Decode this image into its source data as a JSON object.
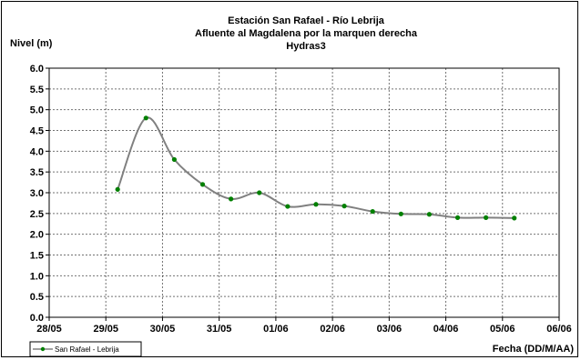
{
  "chart_data": {
    "type": "line",
    "title": [
      "Estación San Rafael - Río Lebrija",
      "Afluente al Magdalena por la marquen derecha",
      "Hydras3"
    ],
    "ylabel": "Nivel (m)",
    "xlabel": "Fecha (DD/M/AA)",
    "ylim": [
      0.0,
      6.0
    ],
    "yticks": [
      "0.0",
      "0.5",
      "1.0",
      "1.5",
      "2.0",
      "2.5",
      "3.0",
      "3.5",
      "4.0",
      "4.5",
      "5.0",
      "5.5",
      "6.0"
    ],
    "xticks": [
      "28/05",
      "29/05",
      "30/05",
      "31/05",
      "01/06",
      "02/06",
      "03/06",
      "04/06",
      "05/06",
      "06/06"
    ],
    "grid": true,
    "legend_position": "bottom-left",
    "series": [
      {
        "name": "San Rafael - Lebrija",
        "line_color": "#808080",
        "marker_color": "#008000",
        "points": [
          {
            "x": "29/05 05:00",
            "y": 3.08
          },
          {
            "x": "29/05 17:00",
            "y": 4.8
          },
          {
            "x": "30/05 05:00",
            "y": 3.8
          },
          {
            "x": "30/05 17:00",
            "y": 3.2
          },
          {
            "x": "31/05 05:00",
            "y": 2.85
          },
          {
            "x": "31/05 17:00",
            "y": 3.0
          },
          {
            "x": "01/06 05:00",
            "y": 2.67
          },
          {
            "x": "01/06 17:00",
            "y": 2.72
          },
          {
            "x": "02/06 05:00",
            "y": 2.68
          },
          {
            "x": "02/06 17:00",
            "y": 2.55
          },
          {
            "x": "03/06 05:00",
            "y": 2.49
          },
          {
            "x": "03/06 17:00",
            "y": 2.48
          },
          {
            "x": "04/06 05:00",
            "y": 2.4
          },
          {
            "x": "04/06 17:00",
            "y": 2.4
          },
          {
            "x": "05/06 05:00",
            "y": 2.39
          }
        ]
      }
    ]
  }
}
